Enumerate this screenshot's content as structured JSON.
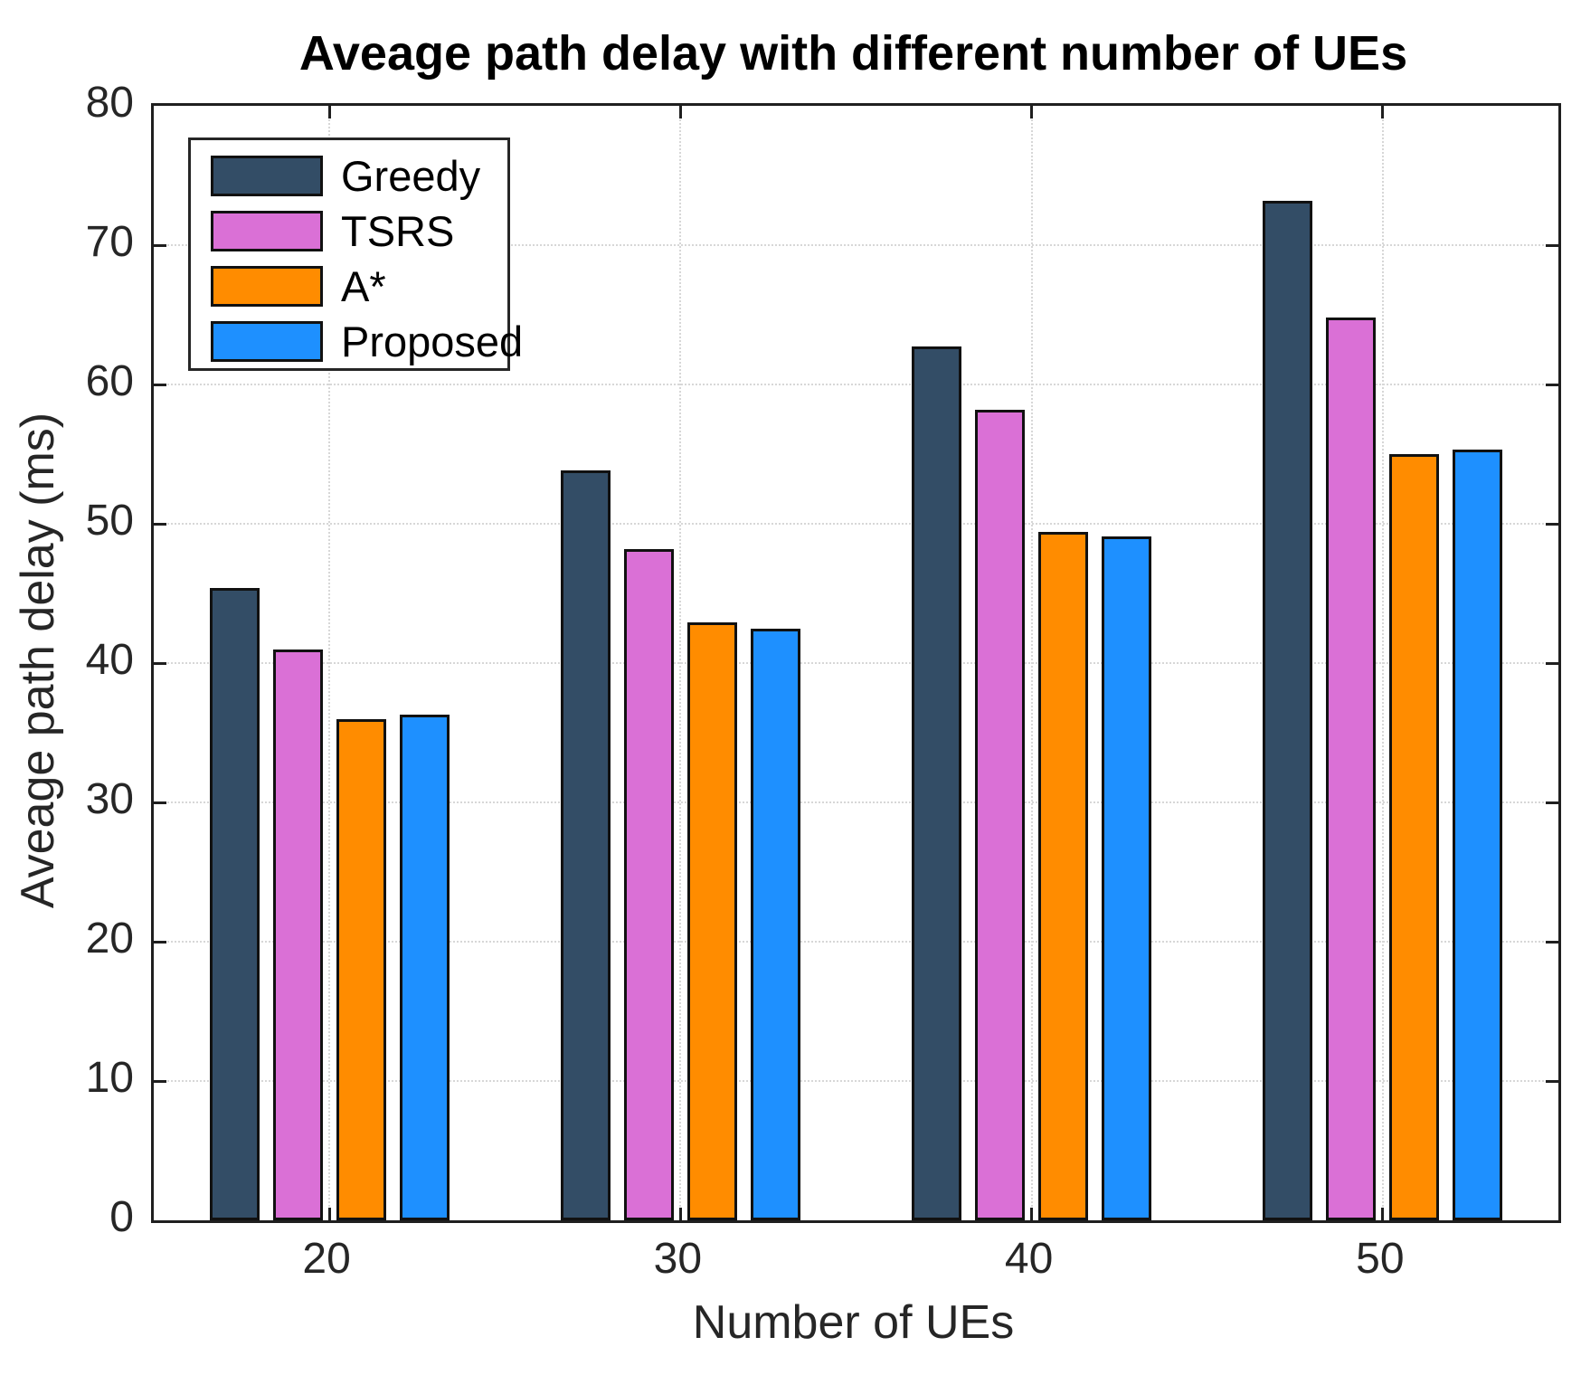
{
  "chart_data": {
    "type": "bar",
    "title": "Aveage path delay with different number of UEs",
    "xlabel": "Number of UEs",
    "ylabel": "Aveage path delay (ms)",
    "categories": [
      "20",
      "30",
      "40",
      "50"
    ],
    "series": [
      {
        "name": "Greedy",
        "color": "#334D66",
        "values": [
          45.4,
          53.8,
          62.7,
          73.2
        ]
      },
      {
        "name": "TSRS",
        "color": "#DA70D6",
        "values": [
          41.0,
          48.2,
          58.2,
          64.8
        ]
      },
      {
        "name": "A*",
        "color": "#FF8C00",
        "values": [
          36.0,
          42.9,
          49.4,
          55.0
        ]
      },
      {
        "name": "Proposed",
        "color": "#1E90FF",
        "values": [
          36.3,
          42.5,
          49.1,
          55.3
        ]
      }
    ],
    "ylim": [
      0,
      80
    ],
    "yticks": [
      0,
      10,
      20,
      30,
      40,
      50,
      60,
      70,
      80
    ],
    "grid": true,
    "grid_style": "dotted",
    "grid_color": "#d7d7d7",
    "axis_color": "#1f1f1f",
    "bar_edge_color": "#111111",
    "legend_position": "top-left",
    "plot_background": "#ffffff"
  }
}
